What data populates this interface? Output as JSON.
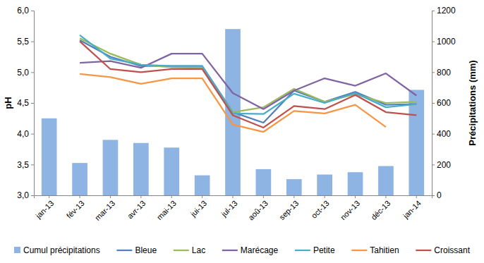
{
  "chart_data": {
    "type": "line",
    "y_label": "pH",
    "y2_label": "Précipitations (mm)",
    "categories": [
      "jan-13",
      "fév-13",
      "mar-13",
      "avr-13",
      "mai-13",
      "jui-13",
      "jul-13",
      "aoû-13",
      "sep-13",
      "oct-13",
      "nov-13",
      "déc-13",
      "jan-14"
    ],
    "ylim": [
      3,
      6
    ],
    "yticks": [
      {
        "value": 3,
        "label": "3,0"
      },
      {
        "value": 3.5,
        "label": "3,5"
      },
      {
        "value": 4,
        "label": "4,0"
      },
      {
        "value": 4.5,
        "label": "4,5"
      },
      {
        "value": 5,
        "label": "5,0"
      },
      {
        "value": 5.5,
        "label": "5,5"
      },
      {
        "value": 6,
        "label": "6,0"
      }
    ],
    "y2lim": [
      0,
      1200
    ],
    "y2ticks": [
      0,
      200,
      400,
      600,
      800,
      1000,
      1200
    ],
    "legend": "bottom",
    "series": [
      {
        "name": "Cumul précipitations",
        "type": "bar",
        "axis": "y2",
        "color": "#8eb4e3",
        "values": [
          500,
          210,
          360,
          340,
          310,
          130,
          1080,
          170,
          105,
          135,
          150,
          190,
          685
        ]
      },
      {
        "name": "Bleue",
        "color": "#4f81bd",
        "values": [
          null,
          5.52,
          5.25,
          5.1,
          5.1,
          5.1,
          4.35,
          4.18,
          4.7,
          4.52,
          4.68,
          4.47,
          4.48
        ]
      },
      {
        "name": "Lac",
        "color": "#9bbb59",
        "values": [
          null,
          5.55,
          5.3,
          5.12,
          5.08,
          5.07,
          4.35,
          4.43,
          4.73,
          4.52,
          4.64,
          4.5,
          4.52
        ]
      },
      {
        "name": "Marécage",
        "color": "#8064a2",
        "values": [
          null,
          5.15,
          5.18,
          5.07,
          5.3,
          5.3,
          4.66,
          4.4,
          4.7,
          4.9,
          4.78,
          4.98,
          4.62
        ]
      },
      {
        "name": "Petite",
        "color": "#4bacc6",
        "values": [
          null,
          5.6,
          5.22,
          5.12,
          5.1,
          5.1,
          4.33,
          4.32,
          4.65,
          4.5,
          4.66,
          4.43,
          4.48
        ]
      },
      {
        "name": "Tahitien",
        "color": "#f79646",
        "values": [
          null,
          4.97,
          4.92,
          4.81,
          4.9,
          4.9,
          4.15,
          4.03,
          4.37,
          4.33,
          4.47,
          4.11,
          null
        ]
      },
      {
        "name": "Croissant",
        "color": "#c0504d",
        "values": [
          null,
          5.5,
          5.05,
          5.0,
          5.05,
          5.05,
          4.3,
          4.1,
          4.45,
          4.4,
          4.63,
          4.35,
          4.3
        ]
      }
    ]
  }
}
